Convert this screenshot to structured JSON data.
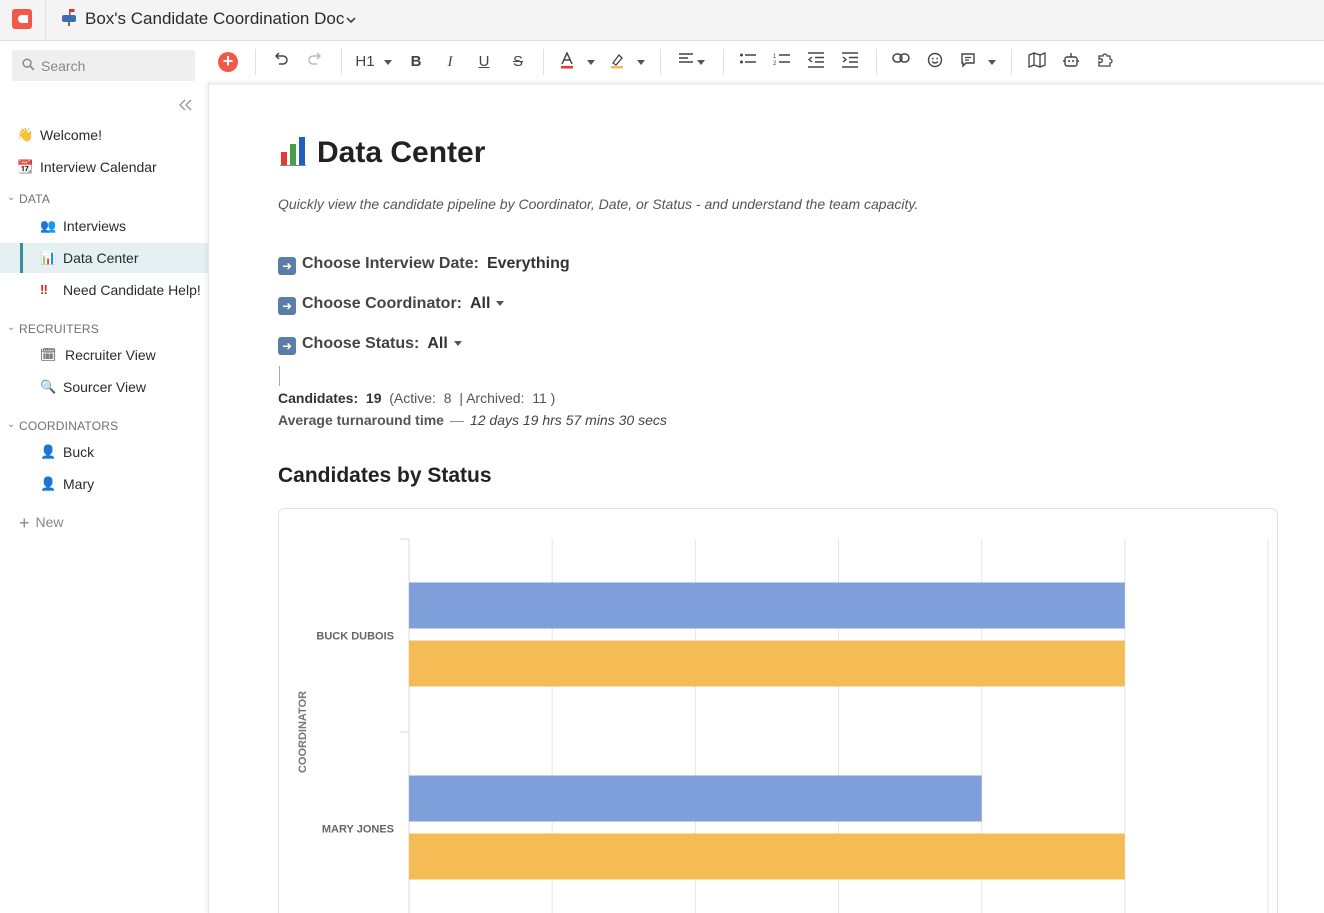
{
  "window": {
    "doc_title": "Box's Candidate Coordination Doc"
  },
  "sidebar": {
    "search_placeholder": "Search",
    "items_top": [
      {
        "label": "Welcome!",
        "icon": "👋"
      },
      {
        "label": "Interview Calendar",
        "icon": "📆"
      }
    ],
    "sections": [
      {
        "title": "DATA",
        "items": [
          {
            "label": "Interviews",
            "icon": "👥"
          },
          {
            "label": "Data Center",
            "icon": "📊",
            "active": true
          },
          {
            "label": "Need Candidate Help!",
            "icon": "‼"
          }
        ]
      },
      {
        "title": "RECRUITERS",
        "items": [
          {
            "label": "Recruiter View",
            "icon": "🗓"
          },
          {
            "label": "Sourcer View",
            "icon": "🔍"
          }
        ]
      },
      {
        "title": "COORDINATORS",
        "items": [
          {
            "label": "Buck",
            "icon": "👤"
          },
          {
            "label": "Mary",
            "icon": "👤"
          }
        ]
      }
    ],
    "new_label": "New"
  },
  "toolbar": {
    "heading_label": "H1"
  },
  "page": {
    "title": "Data Center",
    "subtitle": "Quickly view the candidate pipeline by Coordinator, Date, or Status - and understand the team capacity.",
    "controls": [
      {
        "label": "Choose Interview Date:",
        "value": "Everything"
      },
      {
        "label": "Choose Coordinator:",
        "value": "All"
      },
      {
        "label": "Choose Status:",
        "value": "All"
      }
    ],
    "stats": {
      "candidates_label": "Candidates:",
      "candidates_value": "19",
      "active_label": "(Active:",
      "active_value": "8",
      "archived_label": "| Archived:",
      "archived_value": "11",
      "close_paren": ")",
      "turnaround_label": "Average turnaround time",
      "turnaround_dash": "—",
      "turnaround_value": "12 days 19 hrs 57 mins 30 secs"
    },
    "chart_heading": "Candidates by Status"
  },
  "colors": {
    "series_blue": "#7f9fda",
    "series_orange": "#f5bb55",
    "accent_red": "#f15a4a",
    "active_bg": "#e4f0f2",
    "active_bar": "#3a8f96"
  },
  "chart_data": {
    "type": "bar",
    "orientation": "horizontal",
    "ylabel": "COORDINATOR",
    "categories": [
      "BUCK DUBOIS",
      "MARY JONES"
    ],
    "series": [
      {
        "values": [
          5,
          4
        ]
      },
      {
        "values": [
          5,
          5
        ]
      }
    ],
    "xlim": [
      0,
      6
    ],
    "grid": true
  }
}
